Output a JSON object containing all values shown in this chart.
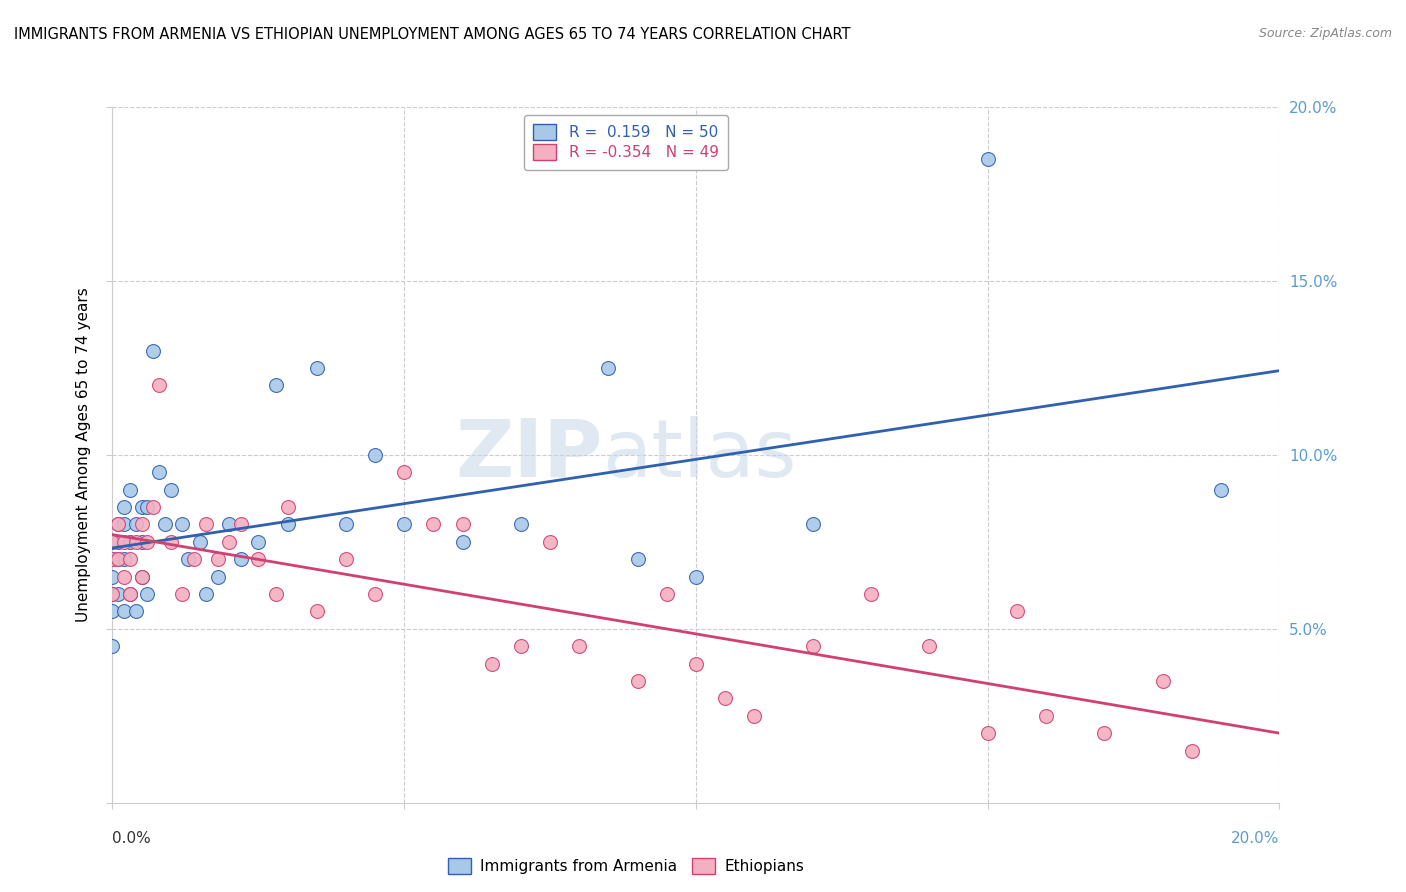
{
  "title": "IMMIGRANTS FROM ARMENIA VS ETHIOPIAN UNEMPLOYMENT AMONG AGES 65 TO 74 YEARS CORRELATION CHART",
  "source": "Source: ZipAtlas.com",
  "ylabel": "Unemployment Among Ages 65 to 74 years",
  "xlim": [
    0.0,
    0.2
  ],
  "ylim": [
    0.0,
    0.2
  ],
  "yticks": [
    0.0,
    0.05,
    0.1,
    0.15,
    0.2
  ],
  "ytick_labels": [
    "",
    "5.0%",
    "10.0%",
    "15.0%",
    "20.0%"
  ],
  "legend_r1": "R =  0.159   N = 50",
  "legend_r2": "R = -0.354   N = 49",
  "color_armenia": "#a8c8e8",
  "color_ethiopia": "#f4b0c0",
  "color_line_armenia": "#3060b0",
  "color_line_ethiopia": "#d04070",
  "color_tick_labels": "#5b9bd5",
  "armenia_x": [
    0.0,
    0.0,
    0.0,
    0.0,
    0.0,
    0.0,
    0.001,
    0.001,
    0.001,
    0.001,
    0.002,
    0.002,
    0.002,
    0.002,
    0.003,
    0.003,
    0.003,
    0.004,
    0.004,
    0.005,
    0.005,
    0.005,
    0.006,
    0.006,
    0.007,
    0.008,
    0.009,
    0.01,
    0.012,
    0.013,
    0.015,
    0.016,
    0.018,
    0.02,
    0.022,
    0.025,
    0.028,
    0.03,
    0.035,
    0.04,
    0.045,
    0.05,
    0.06,
    0.07,
    0.085,
    0.09,
    0.1,
    0.12,
    0.15,
    0.19
  ],
  "armenia_y": [
    0.075,
    0.07,
    0.065,
    0.06,
    0.055,
    0.045,
    0.08,
    0.075,
    0.07,
    0.06,
    0.085,
    0.08,
    0.07,
    0.055,
    0.09,
    0.075,
    0.06,
    0.08,
    0.055,
    0.085,
    0.075,
    0.065,
    0.085,
    0.06,
    0.13,
    0.095,
    0.08,
    0.09,
    0.08,
    0.07,
    0.075,
    0.06,
    0.065,
    0.08,
    0.07,
    0.075,
    0.12,
    0.08,
    0.125,
    0.08,
    0.1,
    0.08,
    0.075,
    0.08,
    0.125,
    0.07,
    0.065,
    0.08,
    0.185,
    0.09
  ],
  "ethiopia_x": [
    0.0,
    0.0,
    0.0,
    0.001,
    0.001,
    0.002,
    0.002,
    0.003,
    0.003,
    0.004,
    0.005,
    0.005,
    0.006,
    0.007,
    0.008,
    0.01,
    0.012,
    0.014,
    0.016,
    0.018,
    0.02,
    0.022,
    0.025,
    0.028,
    0.03,
    0.035,
    0.04,
    0.045,
    0.05,
    0.055,
    0.06,
    0.065,
    0.07,
    0.075,
    0.08,
    0.09,
    0.095,
    0.1,
    0.105,
    0.11,
    0.12,
    0.13,
    0.14,
    0.15,
    0.155,
    0.16,
    0.17,
    0.18,
    0.185
  ],
  "ethiopia_y": [
    0.075,
    0.07,
    0.06,
    0.08,
    0.07,
    0.075,
    0.065,
    0.07,
    0.06,
    0.075,
    0.08,
    0.065,
    0.075,
    0.085,
    0.12,
    0.075,
    0.06,
    0.07,
    0.08,
    0.07,
    0.075,
    0.08,
    0.07,
    0.06,
    0.085,
    0.055,
    0.07,
    0.06,
    0.095,
    0.08,
    0.08,
    0.04,
    0.045,
    0.075,
    0.045,
    0.035,
    0.06,
    0.04,
    0.03,
    0.025,
    0.045,
    0.06,
    0.045,
    0.02,
    0.055,
    0.025,
    0.02,
    0.035,
    0.015
  ]
}
